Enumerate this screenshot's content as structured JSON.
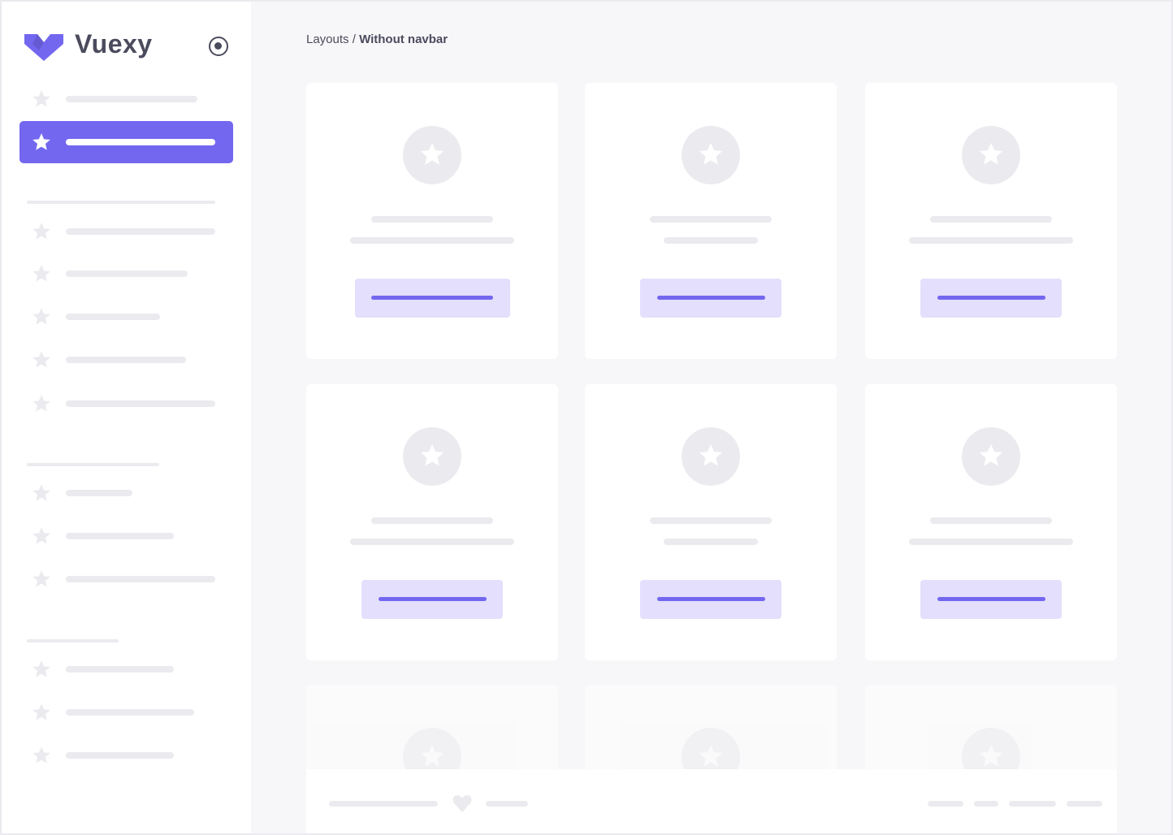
{
  "brand": {
    "name": "Vuexy",
    "logo_color": "#7367f0",
    "toggle_icon": "radio-circle-icon"
  },
  "breadcrumb": {
    "parent": "Layouts",
    "separator": " / ",
    "current": "Without navbar"
  },
  "colors": {
    "accent": "#7367f0",
    "accent_light": "#e3dffc",
    "skeleton": "#ebebef",
    "background": "#f7f7f9"
  },
  "sidebar": {
    "active_index": 1,
    "item_count": 13,
    "section_count": 4
  },
  "footer": {
    "icon": "heart-icon"
  }
}
